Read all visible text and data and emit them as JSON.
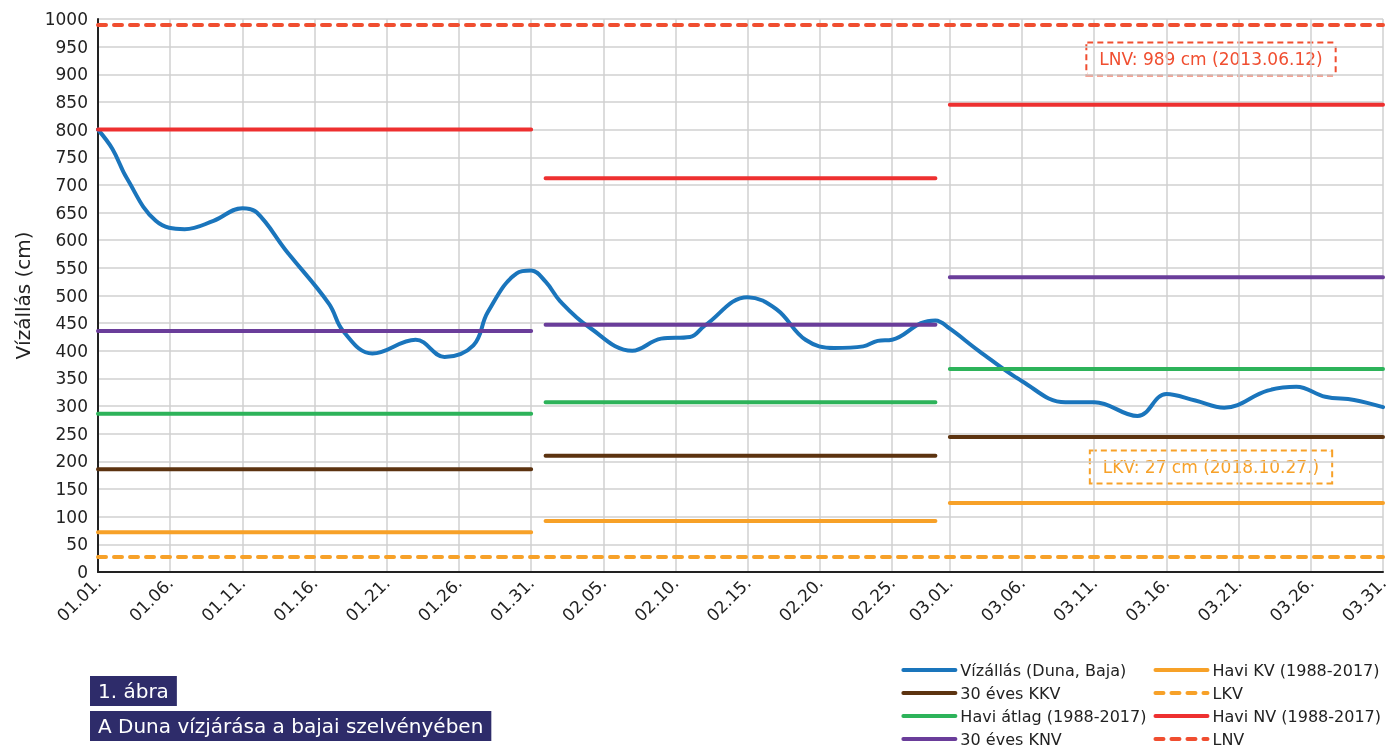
{
  "chart_data": {
    "type": "line",
    "title": "1. ábra",
    "subtitle": "A Duna vízjárása a bajai szelvényében",
    "ylabel": "Vízállás (cm)",
    "xlim": [
      "--01-01",
      "--03-31"
    ],
    "ylim": [
      0,
      1000
    ],
    "yticks": [
      0,
      50,
      100,
      150,
      200,
      250,
      300,
      350,
      400,
      450,
      500,
      550,
      600,
      650,
      700,
      750,
      800,
      850,
      900,
      950,
      1000
    ],
    "xticks": [
      {
        "value": "--01-01",
        "label": "01.01."
      },
      {
        "value": "--01-06",
        "label": "01.06."
      },
      {
        "value": "--01-11",
        "label": "01.11."
      },
      {
        "value": "--01-16",
        "label": "01.16."
      },
      {
        "value": "--01-21",
        "label": "01.21."
      },
      {
        "value": "--01-26",
        "label": "01.26."
      },
      {
        "value": "--01-31",
        "label": "01.31."
      },
      {
        "value": "--02-05",
        "label": "02.05."
      },
      {
        "value": "--02-10",
        "label": "02.10."
      },
      {
        "value": "--02-15",
        "label": "02.15."
      },
      {
        "value": "--02-20",
        "label": "02.20."
      },
      {
        "value": "--02-25",
        "label": "02.25."
      },
      {
        "value": "--03-01",
        "label": "03.01."
      },
      {
        "value": "--03-06",
        "label": "03.06."
      },
      {
        "value": "--03-11",
        "label": "03.11."
      },
      {
        "value": "--03-16",
        "label": "03.16."
      },
      {
        "value": "--03-21",
        "label": "03.21."
      },
      {
        "value": "--03-26",
        "label": "03.26."
      },
      {
        "value": "--03-31",
        "label": "03.31."
      }
    ],
    "grid": true,
    "legend": "bottom right",
    "marker": "none",
    "series": [
      {
        "name": "Vízállás (Duna, Baja)",
        "color": "#1a75bc",
        "x": [
          "--01-01",
          "--01-02",
          "--01-03",
          "--01-05",
          "--01-07",
          "--01-09",
          "--01-11",
          "--01-12",
          "--01-14",
          "--01-17",
          "--01-18",
          "--01-20",
          "--01-23",
          "--01-25",
          "--01-27",
          "--01-28",
          "--01-30",
          "--01-31",
          "--02-01",
          "--02-02",
          "--02-04",
          "--02-07",
          "--02-09",
          "--02-11",
          "--02-12",
          "--02-15",
          "--02-17",
          "--02-19",
          "--02-21",
          "--02-23",
          "--02-24",
          "--02-25",
          "--02-27",
          "--02-28",
          "--03-01",
          "--03-03",
          "--03-06",
          "--03-09",
          "--03-11",
          "--03-14",
          "--03-16",
          "--03-18",
          "--03-20",
          "--03-23",
          "--03-25",
          "--03-27",
          "--03-29",
          "--03-31"
        ],
        "values": [
          800,
          765,
          712,
          635,
          620,
          635,
          658,
          650,
          582,
          485,
          435,
          395,
          420,
          389,
          410,
          470,
          540,
          545,
          525,
          490,
          443,
          400,
          422,
          425,
          445,
          497,
          475,
          420,
          405,
          408,
          418,
          420,
          450,
          455,
          440,
          400,
          345,
          307,
          307,
          282,
          322,
          310,
          297,
          328,
          335,
          317,
          311,
          298
        ]
      },
      {
        "name": "30 éves KKV",
        "color": "#5c3310",
        "x": [
          "--01-01",
          "--01-31",
          null,
          "--02-01",
          "--02-28",
          null,
          "--03-01",
          "--03-31"
        ],
        "values": [
          186,
          186,
          null,
          210,
          210,
          null,
          244,
          244
        ]
      },
      {
        "name": "Havi átlag (1988-2017)",
        "color": "#2db35a",
        "x": [
          "--01-01",
          "--01-31",
          null,
          "--02-01",
          "--02-28",
          null,
          "--03-01",
          "--03-31"
        ],
        "values": [
          286,
          286,
          null,
          307,
          307,
          null,
          367,
          367
        ]
      },
      {
        "name": "30 éves KNV",
        "color": "#6a3d9a",
        "x": [
          "--01-01",
          "--01-31",
          null,
          "--02-01",
          "--02-28",
          null,
          "--03-01",
          "--03-31"
        ],
        "values": [
          436,
          436,
          null,
          447,
          447,
          null,
          533,
          533
        ]
      },
      {
        "name": "Havi KV (1988-2017)",
        "color": "#f7a128",
        "x": [
          "--01-01",
          "--01-31",
          null,
          "--02-01",
          "--02-28",
          null,
          "--03-01",
          "--03-31"
        ],
        "values": [
          72,
          72,
          null,
          92,
          92,
          null,
          125,
          125
        ]
      },
      {
        "name": "LKV",
        "color": "#f7a128",
        "line_style": "dashed",
        "x": [
          "--01-01",
          "--03-31"
        ],
        "values": [
          27,
          27
        ]
      },
      {
        "name": "Havi NV (1988-2017)",
        "color": "#ee3030",
        "x": [
          "--01-01",
          "--01-31",
          null,
          "--02-01",
          "--02-28",
          null,
          "--03-01",
          "--03-31"
        ],
        "values": [
          800,
          800,
          null,
          712,
          712,
          null,
          845,
          845
        ]
      },
      {
        "name": "LNV",
        "color": "#f04e30",
        "line_style": "dashed",
        "x": [
          "--01-01",
          "--03-31"
        ],
        "values": [
          989,
          989
        ]
      }
    ],
    "annotations": [
      "LNV: 989 cm (2013.06.12)",
      "LKV: 27 cm (2018.10.27.)"
    ]
  }
}
